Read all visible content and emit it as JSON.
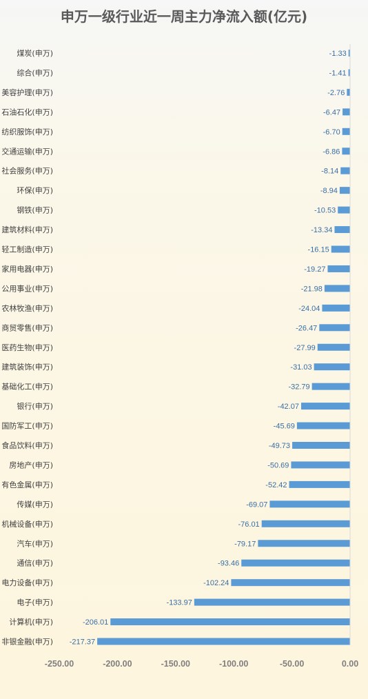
{
  "chart_data": {
    "type": "bar",
    "orientation": "horizontal",
    "title": "申万一级行业近一周主力净流入额(亿元)",
    "categories": [
      "煤炭(申万)",
      "综合(申万)",
      "美容护理(申万)",
      "石油石化(申万)",
      "纺织服饰(申万)",
      "交通运输(申万)",
      "社会服务(申万)",
      "环保(申万)",
      "钢铁(申万)",
      "建筑材料(申万)",
      "轻工制造(申万)",
      "家用电器(申万)",
      "公用事业(申万)",
      "农林牧渔(申万)",
      "商贸零售(申万)",
      "医药生物(申万)",
      "建筑装饰(申万)",
      "基础化工(申万)",
      "银行(申万)",
      "国防军工(申万)",
      "食品饮料(申万)",
      "房地产(申万)",
      "有色金属(申万)",
      "传媒(申万)",
      "机械设备(申万)",
      "汽车(申万)",
      "通信(申万)",
      "电力设备(申万)",
      "电子(申万)",
      "计算机(申万)",
      "非银金融(申万)"
    ],
    "values": [
      -1.33,
      -1.41,
      -2.76,
      -6.47,
      -6.7,
      -6.86,
      -8.14,
      -8.94,
      -10.53,
      -13.34,
      -16.15,
      -19.27,
      -21.98,
      -24.04,
      -26.47,
      -27.99,
      -31.03,
      -32.79,
      -42.07,
      -45.69,
      -49.73,
      -50.69,
      -52.42,
      -69.07,
      -76.01,
      -79.17,
      -93.46,
      -102.24,
      -133.97,
      -206.01,
      -217.37
    ],
    "value_labels": [
      "-1.33",
      "-1.41",
      "-2.76",
      "-6.47",
      "-6.70",
      "-6.86",
      "-8.14",
      "-8.94",
      "-10.53",
      "-13.34",
      "-16.15",
      "-19.27",
      "-21.98",
      "-24.04",
      "-26.47",
      "-27.99",
      "-31.03",
      "-32.79",
      "-42.07",
      "-45.69",
      "-49.73",
      "-50.69",
      "-52.42",
      "-69.07",
      "-76.01",
      "-79.17",
      "-93.46",
      "-102.24",
      "-133.97",
      "-206.01",
      "-217.37"
    ],
    "xlim": [
      -250,
      0
    ],
    "xticks": [
      -250,
      -200,
      -150,
      -100,
      -50,
      0
    ],
    "xtick_labels": [
      "-250.00",
      "-200.00",
      "-150.00",
      "-100.00",
      "-50.00",
      "0.00"
    ],
    "grid": false,
    "bar_color": "#5b9bd5",
    "label_color": "#3a6ea5"
  }
}
